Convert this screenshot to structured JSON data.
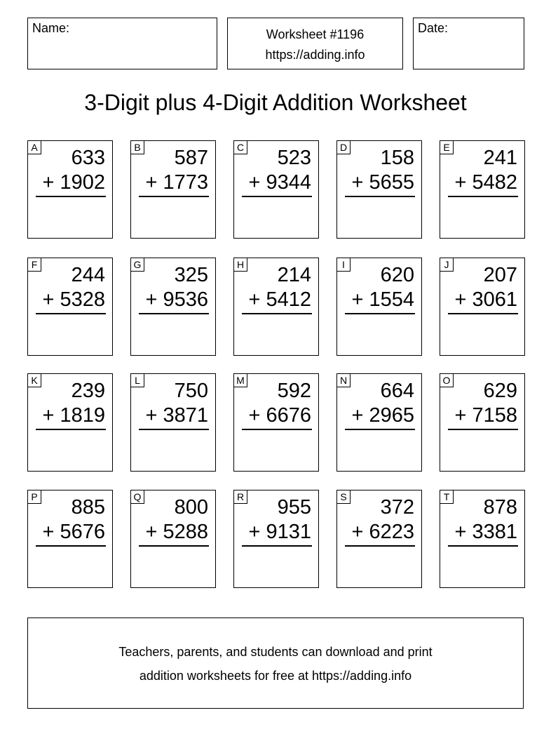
{
  "header": {
    "name_label": "Name:",
    "worksheet_number": "Worksheet #1196",
    "worksheet_url": "https://adding.info",
    "date_label": "Date:"
  },
  "title": "3-Digit plus 4-Digit Addition Worksheet",
  "problems": [
    {
      "letter": "A",
      "top": "633",
      "bottom": "+ 1902"
    },
    {
      "letter": "B",
      "top": "587",
      "bottom": "+ 1773"
    },
    {
      "letter": "C",
      "top": "523",
      "bottom": "+ 9344"
    },
    {
      "letter": "D",
      "top": "158",
      "bottom": "+ 5655"
    },
    {
      "letter": "E",
      "top": "241",
      "bottom": "+ 5482"
    },
    {
      "letter": "F",
      "top": "244",
      "bottom": "+ 5328"
    },
    {
      "letter": "G",
      "top": "325",
      "bottom": "+ 9536"
    },
    {
      "letter": "H",
      "top": "214",
      "bottom": "+ 5412"
    },
    {
      "letter": "I",
      "top": "620",
      "bottom": "+ 1554"
    },
    {
      "letter": "J",
      "top": "207",
      "bottom": "+ 3061"
    },
    {
      "letter": "K",
      "top": "239",
      "bottom": "+ 1819"
    },
    {
      "letter": "L",
      "top": "750",
      "bottom": "+ 3871"
    },
    {
      "letter": "M",
      "top": "592",
      "bottom": "+ 6676"
    },
    {
      "letter": "N",
      "top": "664",
      "bottom": "+ 2965"
    },
    {
      "letter": "O",
      "top": "629",
      "bottom": "+ 7158"
    },
    {
      "letter": "P",
      "top": "885",
      "bottom": "+ 5676"
    },
    {
      "letter": "Q",
      "top": "800",
      "bottom": "+ 5288"
    },
    {
      "letter": "R",
      "top": "955",
      "bottom": "+ 9131"
    },
    {
      "letter": "S",
      "top": "372",
      "bottom": "+ 6223"
    },
    {
      "letter": "T",
      "top": "878",
      "bottom": "+ 3381"
    }
  ],
  "footer": {
    "line1": "Teachers, parents, and students can download and print",
    "line2": "addition worksheets for free at https://adding.info"
  }
}
